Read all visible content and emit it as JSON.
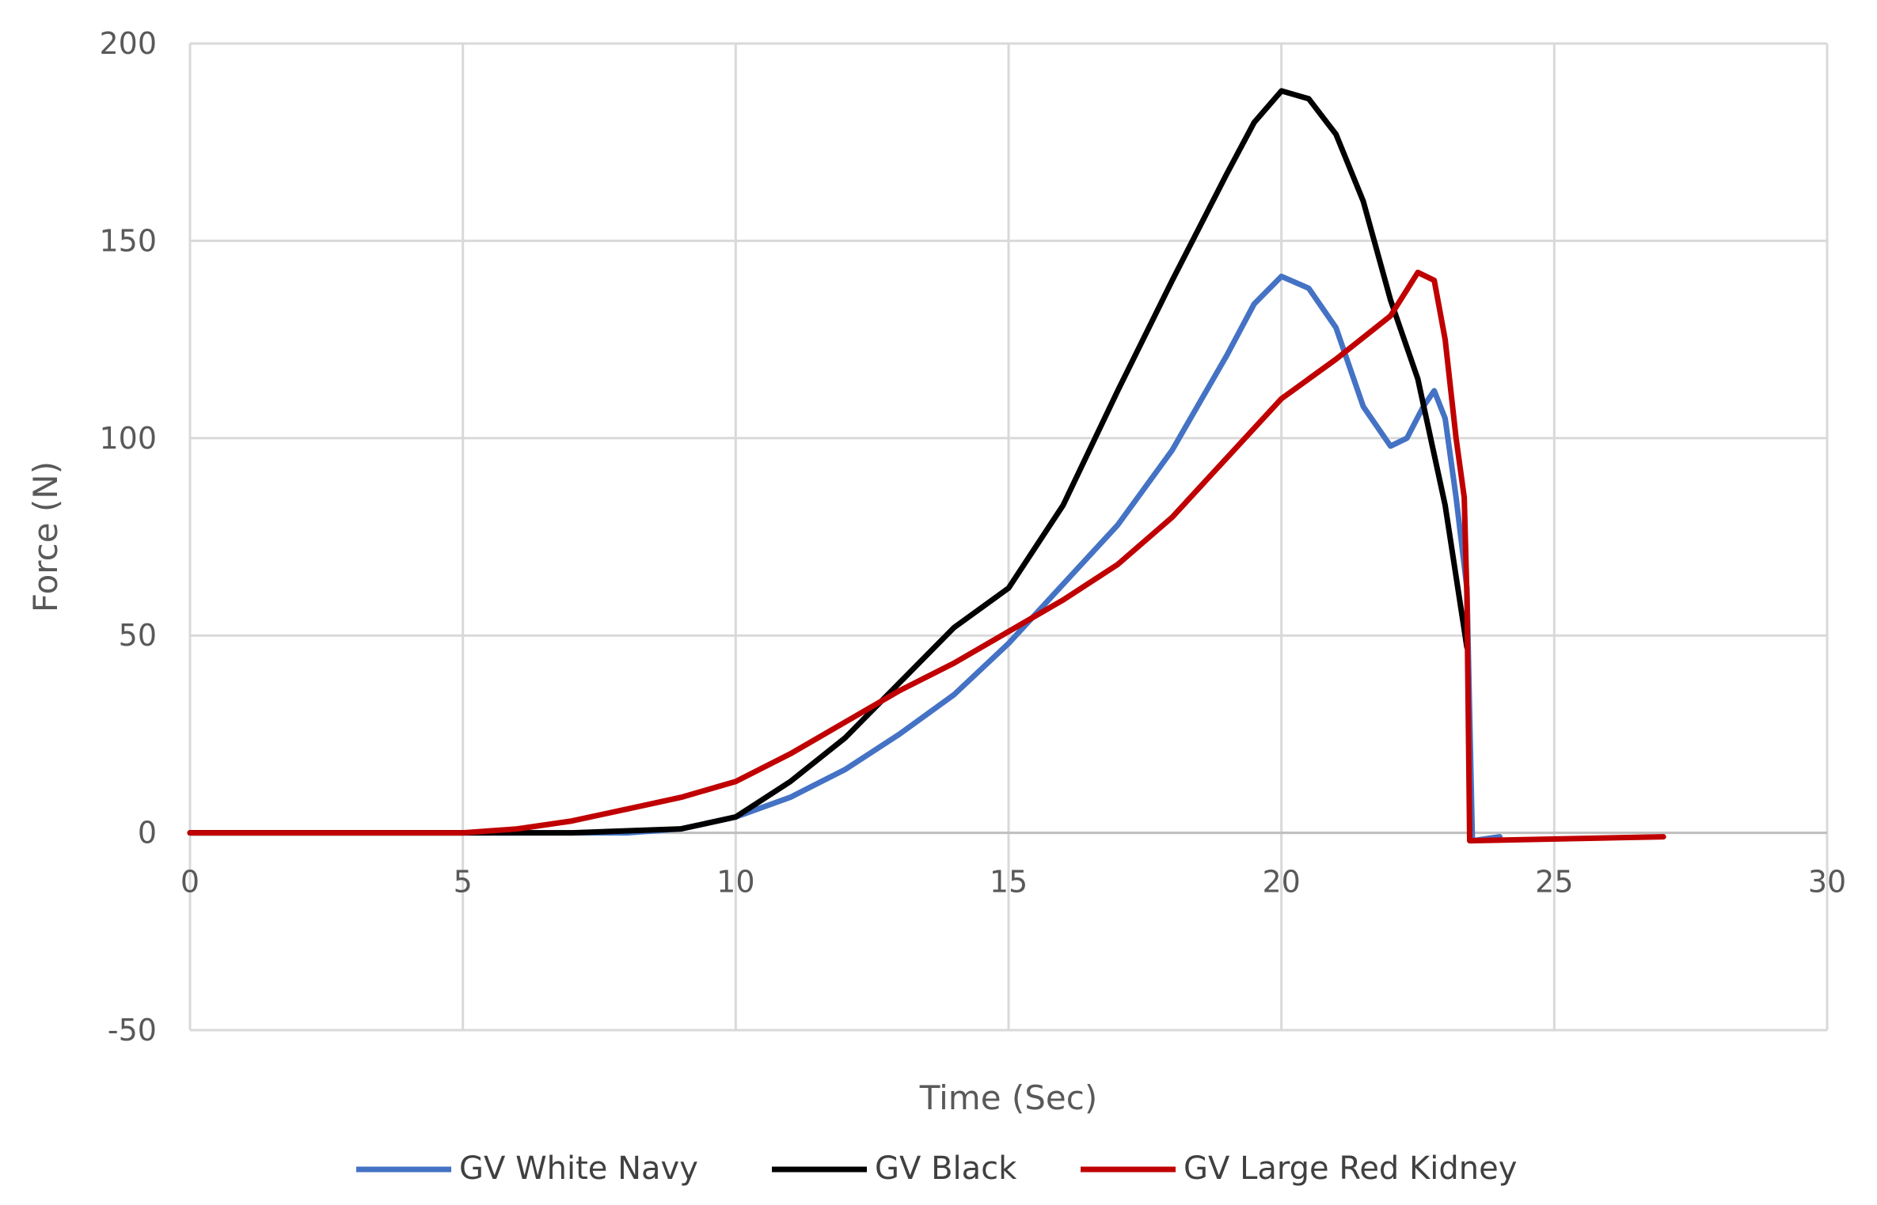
{
  "chart_data": {
    "type": "line",
    "title": "",
    "xlabel": "Time (Sec)",
    "ylabel": "Force (N)",
    "xlim": [
      0,
      30
    ],
    "ylim": [
      -50,
      200
    ],
    "x_ticks": [
      0,
      5,
      10,
      15,
      20,
      25,
      30
    ],
    "y_ticks": [
      -50,
      0,
      50,
      100,
      150,
      200
    ],
    "x_tick_labels": [
      "0",
      "5",
      "10",
      "15",
      "20",
      "25",
      "30"
    ],
    "y_tick_labels": [
      "-50",
      "0",
      "50",
      "100",
      "150",
      "200"
    ],
    "grid": true,
    "legend_position": "bottom",
    "series": [
      {
        "name": "GV White Navy",
        "color": "#4472C4",
        "points": [
          [
            0,
            0
          ],
          [
            8,
            0
          ],
          [
            9,
            1
          ],
          [
            10,
            4
          ],
          [
            11,
            9
          ],
          [
            12,
            16
          ],
          [
            13,
            25
          ],
          [
            14,
            35
          ],
          [
            15,
            48
          ],
          [
            16,
            63
          ],
          [
            17,
            78
          ],
          [
            18,
            97
          ],
          [
            19,
            121
          ],
          [
            19.5,
            134
          ],
          [
            20,
            141
          ],
          [
            20.5,
            138
          ],
          [
            21,
            128
          ],
          [
            21.5,
            108
          ],
          [
            22,
            98
          ],
          [
            22.3,
            100
          ],
          [
            22.6,
            108
          ],
          [
            22.8,
            112
          ],
          [
            23,
            105
          ],
          [
            23.2,
            85
          ],
          [
            23.4,
            62
          ],
          [
            23.5,
            -2
          ],
          [
            24,
            -1
          ]
        ]
      },
      {
        "name": "GV Black",
        "color": "#000000",
        "points": [
          [
            0,
            0
          ],
          [
            7,
            0
          ],
          [
            9,
            1
          ],
          [
            10,
            4
          ],
          [
            11,
            13
          ],
          [
            12,
            24
          ],
          [
            13,
            38
          ],
          [
            14,
            52
          ],
          [
            15,
            62
          ],
          [
            16,
            83
          ],
          [
            17,
            112
          ],
          [
            18,
            140
          ],
          [
            19,
            167
          ],
          [
            19.5,
            180
          ],
          [
            20,
            188
          ],
          [
            20.5,
            186
          ],
          [
            21,
            177
          ],
          [
            21.5,
            160
          ],
          [
            22,
            135
          ],
          [
            22.5,
            115
          ],
          [
            23,
            83
          ],
          [
            23.4,
            47
          ]
        ]
      },
      {
        "name": "GV Large Red Kidney",
        "color": "#C00000",
        "points": [
          [
            0,
            0
          ],
          [
            5,
            0
          ],
          [
            6,
            1
          ],
          [
            7,
            3
          ],
          [
            8,
            6
          ],
          [
            9,
            9
          ],
          [
            10,
            13
          ],
          [
            11,
            20
          ],
          [
            12,
            28
          ],
          [
            13,
            36
          ],
          [
            14,
            43
          ],
          [
            15,
            51
          ],
          [
            16,
            59
          ],
          [
            17,
            68
          ],
          [
            18,
            80
          ],
          [
            19,
            95
          ],
          [
            20,
            110
          ],
          [
            21,
            120
          ],
          [
            22,
            131
          ],
          [
            22.5,
            142
          ],
          [
            22.8,
            140
          ],
          [
            23,
            125
          ],
          [
            23.2,
            100
          ],
          [
            23.35,
            85
          ],
          [
            23.4,
            60
          ],
          [
            23.45,
            -2
          ],
          [
            27,
            -1
          ]
        ]
      }
    ]
  }
}
